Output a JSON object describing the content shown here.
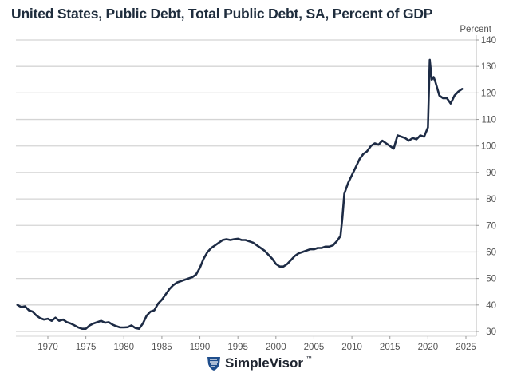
{
  "title": "United States, Public Debt, Total Public Debt, SA, Percent of GDP",
  "brand": {
    "name": "SimpleVisor",
    "tm": "™",
    "icon": "shield-lion-icon",
    "color": "#1f4e8c"
  },
  "colors": {
    "line": "#1d2b45",
    "grid": "#d4d4d4",
    "axis": "#b8b8b8",
    "text": "#555555"
  },
  "chart_data": {
    "type": "line",
    "title": "United States, Public Debt, Total Public Debt, SA, Percent of GDP",
    "xlabel": "",
    "ylabel": "Percent",
    "xlim": [
      1965.8,
      2026.3
    ],
    "ylim": [
      30,
      140
    ],
    "y_axis_position": "right",
    "grid": true,
    "x_ticks": [
      "1970",
      "1975",
      "1980",
      "1985",
      "1990",
      "1995",
      "2000",
      "2005",
      "2010",
      "2015",
      "2020",
      "2025"
    ],
    "y_ticks": [
      "30",
      "40",
      "50",
      "60",
      "70",
      "80",
      "90",
      "100",
      "110",
      "120",
      "130",
      "140"
    ],
    "series": [
      {
        "name": "Total Public Debt, % of GDP",
        "x": [
          1966.0,
          1966.5,
          1967.0,
          1967.5,
          1968.0,
          1968.5,
          1969.0,
          1969.5,
          1970.0,
          1970.5,
          1971.0,
          1971.5,
          1972.0,
          1972.5,
          1973.0,
          1973.5,
          1974.0,
          1974.5,
          1975.0,
          1975.5,
          1976.0,
          1976.5,
          1977.0,
          1977.5,
          1978.0,
          1978.5,
          1979.0,
          1979.5,
          1980.0,
          1980.5,
          1981.0,
          1981.5,
          1982.0,
          1982.5,
          1983.0,
          1983.5,
          1984.0,
          1984.5,
          1985.0,
          1985.5,
          1986.0,
          1986.5,
          1987.0,
          1987.5,
          1988.0,
          1988.5,
          1989.0,
          1989.5,
          1990.0,
          1990.5,
          1991.0,
          1991.5,
          1992.0,
          1992.5,
          1993.0,
          1993.5,
          1994.0,
          1994.5,
          1995.0,
          1995.5,
          1996.0,
          1996.5,
          1997.0,
          1997.5,
          1998.0,
          1998.5,
          1999.0,
          1999.5,
          2000.0,
          2000.5,
          2001.0,
          2001.5,
          2002.0,
          2002.5,
          2003.0,
          2003.5,
          2004.0,
          2004.5,
          2005.0,
          2005.5,
          2006.0,
          2006.5,
          2007.0,
          2007.5,
          2008.0,
          2008.5,
          2008.75,
          2009.0,
          2009.5,
          2010.0,
          2010.5,
          2011.0,
          2011.5,
          2012.0,
          2012.5,
          2013.0,
          2013.5,
          2014.0,
          2014.5,
          2015.0,
          2015.5,
          2016.0,
          2016.5,
          2017.0,
          2017.5,
          2018.0,
          2018.5,
          2019.0,
          2019.5,
          2020.0,
          2020.25,
          2020.5,
          2020.75,
          2021.0,
          2021.5,
          2022.0,
          2022.5,
          2023.0,
          2023.5,
          2024.0,
          2024.5
        ],
        "y": [
          40.0,
          39.2,
          39.5,
          38.0,
          37.5,
          36.0,
          35.0,
          34.5,
          34.8,
          34.0,
          35.2,
          34.0,
          34.5,
          33.5,
          33.0,
          32.3,
          31.5,
          31.0,
          31.0,
          32.3,
          33.0,
          33.5,
          34.0,
          33.3,
          33.5,
          32.6,
          32.0,
          31.5,
          31.5,
          31.6,
          32.3,
          31.3,
          31.0,
          33.0,
          36.0,
          37.5,
          38.0,
          40.5,
          42.0,
          44.0,
          46.0,
          47.5,
          48.5,
          49.0,
          49.5,
          50.0,
          50.5,
          51.5,
          54.0,
          57.5,
          60.0,
          61.5,
          62.5,
          63.5,
          64.5,
          64.8,
          64.5,
          64.8,
          65.0,
          64.5,
          64.5,
          64.0,
          63.5,
          62.5,
          61.5,
          60.5,
          59.0,
          57.5,
          55.5,
          54.5,
          54.5,
          55.5,
          57.0,
          58.5,
          59.5,
          60.0,
          60.5,
          61.0,
          61.0,
          61.5,
          61.5,
          62.0,
          62.0,
          62.5,
          64.0,
          66.0,
          73.0,
          82.0,
          86.0,
          89.0,
          92.0,
          95.0,
          97.0,
          98.0,
          100.0,
          101.0,
          100.5,
          102.0,
          101.0,
          100.0,
          99.0,
          104.0,
          103.5,
          103.0,
          102.0,
          103.0,
          102.5,
          104.0,
          103.5,
          107.0,
          132.5,
          125.0,
          126.0,
          124.0,
          119.0,
          118.0,
          118.0,
          116.0,
          119.0,
          120.5,
          121.5
        ]
      }
    ]
  }
}
